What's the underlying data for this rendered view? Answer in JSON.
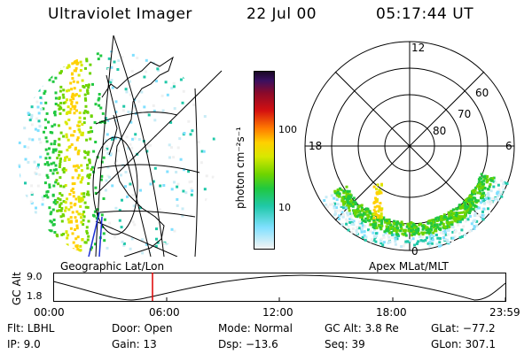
{
  "header": {
    "instrument": "Ultraviolet Imager",
    "date": "22 Jul 00",
    "time": "05:17:44 UT"
  },
  "colorbar": {
    "unit_label": "photon cm⁻²s⁻¹",
    "ticks": [
      "100",
      "10"
    ]
  },
  "polar_plot": {
    "mlt_labels": [
      "12",
      "18",
      "6",
      "0"
    ],
    "mlat_labels": [
      "60",
      "70",
      "80"
    ]
  },
  "panel_labels": {
    "left": "Geographic Lat/Lon",
    "right": "Apex MLat/MLT"
  },
  "altitude_plot": {
    "axis_label": "GC Alt",
    "y_ticks": [
      "9.0",
      "1.8"
    ],
    "x_ticks": [
      "00:00",
      "06:00",
      "12:00",
      "18:00",
      "23:59"
    ],
    "marker_color": "#dd0000"
  },
  "info": {
    "row1": [
      {
        "label": "Flt:",
        "value": "LBHL"
      },
      {
        "label": "Door:",
        "value": "Open"
      },
      {
        "label": "Mode:",
        "value": "Normal"
      },
      {
        "label": "GC Alt:",
        "value": "3.8 Re"
      },
      {
        "label": "GLat:",
        "value": "−77.2"
      }
    ],
    "row2": [
      {
        "label": "IP:",
        "value": "9.0"
      },
      {
        "label": "Gain:",
        "value": "13"
      },
      {
        "label": "Dsp:",
        "value": "−13.6"
      },
      {
        "label": "Seq:",
        "value": "39"
      },
      {
        "label": "GLon:",
        "value": "307.1"
      }
    ]
  }
}
